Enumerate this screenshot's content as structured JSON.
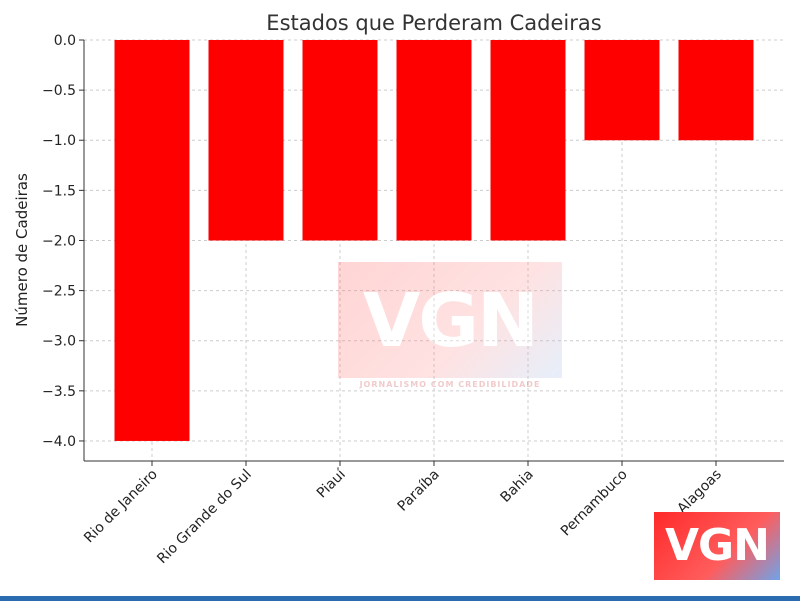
{
  "chart_data": {
    "type": "bar",
    "title": "Estados que Perderam Cadeiras",
    "xlabel": "",
    "ylabel": "Número de Cadeiras",
    "categories": [
      "Rio de Janeiro",
      "Rio Grande do Sul",
      "Piauí",
      "Paraíba",
      "Bahia",
      "Pernambuco",
      "Alagoas"
    ],
    "values": [
      -4,
      -2,
      -2,
      -2,
      -2,
      -1,
      -1
    ],
    "ylim": [
      -4.2,
      0
    ],
    "yticks": [
      "0.0",
      "−0.5",
      "−1.0",
      "−1.5",
      "−2.0",
      "−2.5",
      "−3.0",
      "−3.5",
      "−4.0"
    ],
    "bar_color": "#ff0000",
    "grid": true
  },
  "watermark": {
    "brand": "VGN",
    "tagline": "JORNALISMO COM CREDIBILIDADE"
  },
  "colors": {
    "accent": "#2b6cb0"
  }
}
